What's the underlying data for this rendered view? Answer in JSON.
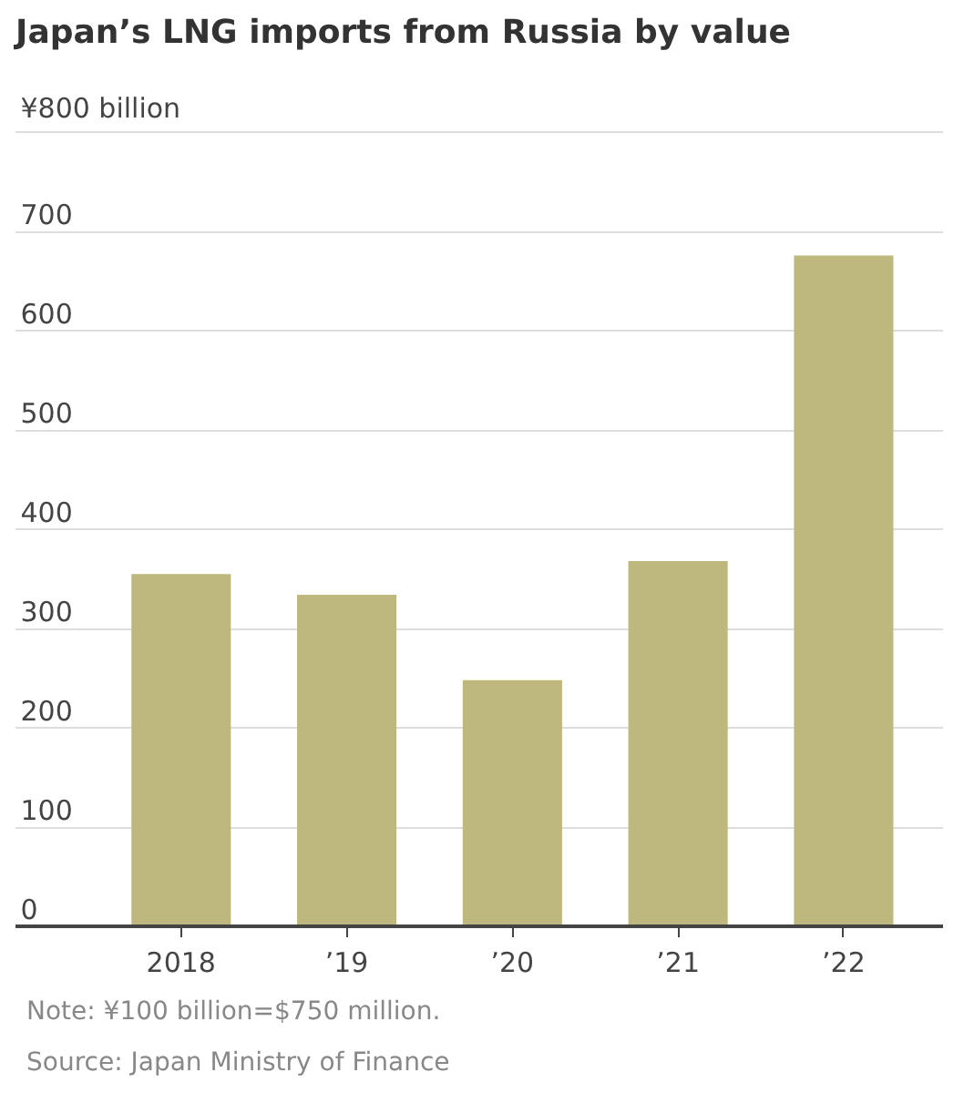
{
  "chart_data": {
    "type": "bar",
    "title": "Japan’s LNG imports from Russia by value",
    "categories": [
      "2018",
      "’19",
      "’20",
      "’21",
      "’22"
    ],
    "values": [
      355,
      334,
      248,
      368,
      676
    ],
    "color": "#bfb87e",
    "ylim": [
      0,
      800
    ],
    "yticks": [
      0,
      100,
      200,
      300,
      400,
      500,
      600,
      700,
      {
        "value": 800,
        "label": "¥800 billion"
      }
    ],
    "grid": "y",
    "annotations": [
      "Note: ¥100 billion=$750 million.",
      "Source: Japan Ministry of Finance"
    ]
  }
}
